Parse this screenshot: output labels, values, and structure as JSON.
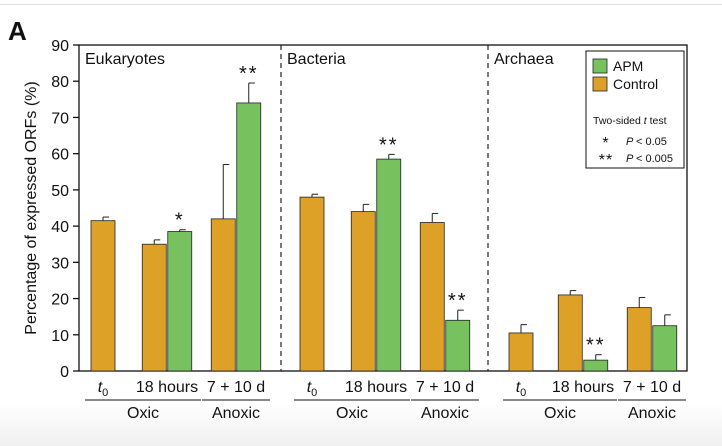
{
  "panel_label": "A",
  "colors": {
    "apm": "#77c25e",
    "control": "#dea127"
  },
  "chart_data": {
    "type": "bar",
    "ylabel": "Percentage of expressed ORFs (%)",
    "ylim": [
      0,
      90
    ],
    "yticks": [
      0,
      10,
      20,
      30,
      40,
      50,
      60,
      70,
      80,
      90
    ],
    "grid": false,
    "legend_position": "top-right",
    "series": [
      {
        "name": "APM",
        "color": "#77c25e"
      },
      {
        "name": "Control",
        "color": "#dea127"
      }
    ],
    "panels": [
      {
        "title": "Eukaryotes",
        "groups": [
          {
            "label": "t",
            "label_sub": "0",
            "condition": "Oxic",
            "bars": [
              {
                "series": "Control",
                "value": 41.5,
                "error": 1.0
              }
            ]
          },
          {
            "label": "18 hours",
            "condition": "Oxic",
            "bars": [
              {
                "series": "Control",
                "value": 35.0,
                "error": 1.2
              },
              {
                "series": "APM",
                "value": 38.5,
                "error": 0.5,
                "sig": "*"
              }
            ]
          },
          {
            "label": "7 + 10 d",
            "condition": "Anoxic",
            "bars": [
              {
                "series": "Control",
                "value": 42.0,
                "error": 15.0
              },
              {
                "series": "APM",
                "value": 74.0,
                "error": 5.5,
                "sig": "**"
              }
            ]
          }
        ]
      },
      {
        "title": "Bacteria",
        "groups": [
          {
            "label": "t",
            "label_sub": "0",
            "condition": "Oxic",
            "bars": [
              {
                "series": "Control",
                "value": 48.0,
                "error": 0.8
              }
            ]
          },
          {
            "label": "18 hours",
            "condition": "Oxic",
            "bars": [
              {
                "series": "Control",
                "value": 44.0,
                "error": 2.0
              },
              {
                "series": "APM",
                "value": 58.5,
                "error": 1.3,
                "sig": "**"
              }
            ]
          },
          {
            "label": "7 + 10 d",
            "condition": "Anoxic",
            "bars": [
              {
                "series": "Control",
                "value": 41.0,
                "error": 2.5
              },
              {
                "series": "APM",
                "value": 14.0,
                "error": 2.8,
                "sig": "**"
              }
            ]
          }
        ]
      },
      {
        "title": "Archaea",
        "groups": [
          {
            "label": "t",
            "label_sub": "0",
            "condition": "Oxic",
            "bars": [
              {
                "series": "Control",
                "value": 10.5,
                "error": 2.3
              }
            ]
          },
          {
            "label": "18 hours",
            "condition": "Oxic",
            "bars": [
              {
                "series": "Control",
                "value": 21.0,
                "error": 1.2
              },
              {
                "series": "APM",
                "value": 3.0,
                "error": 1.5,
                "sig": "**"
              }
            ]
          },
          {
            "label": "7 + 10 d",
            "condition": "Anoxic",
            "bars": [
              {
                "series": "Control",
                "value": 17.5,
                "error": 2.8
              },
              {
                "series": "APM",
                "value": 12.5,
                "error": 3.0
              }
            ]
          }
        ]
      }
    ],
    "legend_note": {
      "title": "Two-sided",
      "title_italic": "t",
      "title_end": "test",
      "entries": [
        {
          "symbol": "*",
          "p": "P",
          "text": "< 0.05"
        },
        {
          "symbol": "**",
          "p": "P",
          "text": "< 0.005"
        }
      ]
    }
  }
}
